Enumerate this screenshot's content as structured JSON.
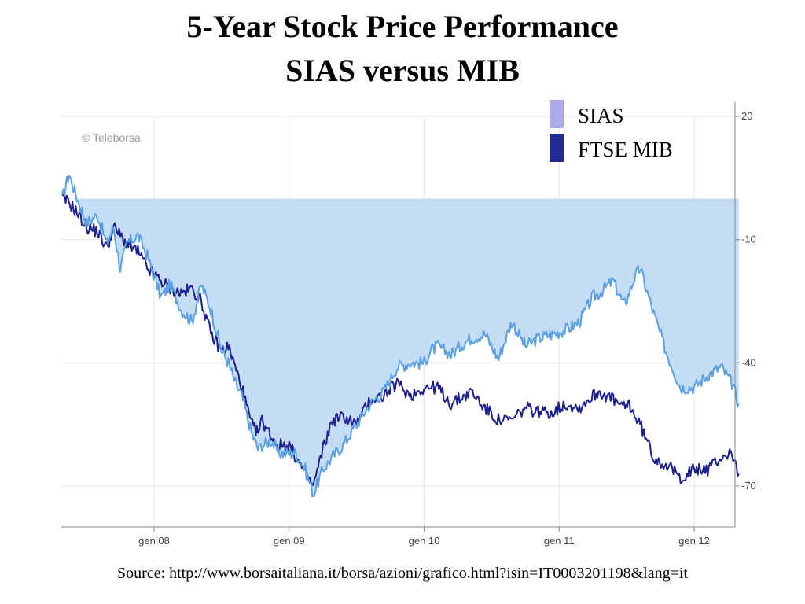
{
  "title_line1": "5-Year Stock Price Performance",
  "title_line2": "SIAS versus MIB",
  "watermark": "© Teleborsa",
  "source": "Source: http://www.borsaitaliana.it/borsa/azioni/grafico.html?isin=IT0003201198&lang=it",
  "chart_data": {
    "type": "line",
    "xlim": [
      2007.32,
      2012.33
    ],
    "ylim": [
      -80,
      20
    ],
    "y_ticks": [
      20,
      -10,
      -40,
      -70
    ],
    "y_tick_labels": [
      "20",
      "-10",
      "-40",
      "-70"
    ],
    "x_ticks": [
      2008,
      2009,
      2010,
      2011,
      2012
    ],
    "x_tick_labels": [
      "gen 08",
      "gen 09",
      "gen 10",
      "gen 11",
      "gen 12"
    ],
    "baseline": 0,
    "grid": true,
    "legend_position": "top-right",
    "series": [
      {
        "name": "SIAS",
        "color": "#5aa0e2",
        "legend_color": "#aaaaea",
        "fill": "#c4dcf4",
        "x": [
          2007.32,
          2007.37,
          2007.42,
          2007.5,
          2007.58,
          2007.65,
          2007.7,
          2007.75,
          2007.8,
          2007.88,
          2007.95,
          2008.05,
          2008.12,
          2008.2,
          2008.28,
          2008.35,
          2008.42,
          2008.5,
          2008.55,
          2008.6,
          2008.65,
          2008.72,
          2008.77,
          2008.8,
          2008.87,
          2008.92,
          2009.0,
          2009.05,
          2009.12,
          2009.18,
          2009.25,
          2009.32,
          2009.4,
          2009.5,
          2009.6,
          2009.7,
          2009.8,
          2009.9,
          2010.0,
          2010.05,
          2010.1,
          2010.2,
          2010.3,
          2010.35,
          2010.45,
          2010.55,
          2010.65,
          2010.75,
          2010.85,
          2010.95,
          2011.05,
          2011.15,
          2011.25,
          2011.3,
          2011.4,
          2011.48,
          2011.52,
          2011.56,
          2011.6,
          2011.7,
          2011.8,
          2011.9,
          2012.0,
          2012.1,
          2012.2,
          2012.28,
          2012.33
        ],
        "values": [
          0,
          6,
          1,
          -6,
          -4,
          -11,
          -7,
          -17,
          -11,
          -9,
          -14,
          -24,
          -21,
          -27,
          -30,
          -21,
          -27,
          -37,
          -40,
          -45,
          -48,
          -57,
          -61,
          -60,
          -59,
          -62,
          -62,
          -62,
          -66,
          -72,
          -66,
          -63,
          -60,
          -55,
          -50,
          -47,
          -41,
          -40,
          -40,
          -37,
          -36,
          -38,
          -35,
          -34,
          -33,
          -39,
          -30,
          -36,
          -34,
          -33,
          -32,
          -30,
          -24,
          -23,
          -20,
          -26,
          -23,
          -19,
          -17,
          -28,
          -38,
          -46,
          -46,
          -43,
          -41,
          -45,
          -50
        ],
        "note": "values are relative performance (%) vs. start"
      },
      {
        "name": "FTSE MIB",
        "color": "#1c1f8c",
        "legend_color": "#222b92",
        "x": [
          2007.32,
          2007.37,
          2007.42,
          2007.5,
          2007.58,
          2007.65,
          2007.7,
          2007.75,
          2007.8,
          2007.88,
          2007.95,
          2008.05,
          2008.12,
          2008.2,
          2008.28,
          2008.35,
          2008.42,
          2008.5,
          2008.55,
          2008.6,
          2008.65,
          2008.72,
          2008.77,
          2008.8,
          2008.87,
          2008.92,
          2009.0,
          2009.05,
          2009.12,
          2009.18,
          2009.25,
          2009.32,
          2009.4,
          2009.5,
          2009.6,
          2009.7,
          2009.8,
          2009.9,
          2010.0,
          2010.05,
          2010.1,
          2010.2,
          2010.3,
          2010.35,
          2010.45,
          2010.55,
          2010.65,
          2010.75,
          2010.85,
          2010.95,
          2011.05,
          2011.15,
          2011.25,
          2011.3,
          2011.4,
          2011.48,
          2011.52,
          2011.56,
          2011.6,
          2011.7,
          2011.8,
          2011.9,
          2012.0,
          2012.1,
          2012.2,
          2012.28,
          2012.33
        ],
        "values": [
          0,
          -1,
          -3,
          -7,
          -8,
          -12,
          -7,
          -9,
          -11,
          -13,
          -17,
          -20,
          -22,
          -23,
          -22,
          -25,
          -33,
          -37,
          -36,
          -41,
          -46,
          -55,
          -57,
          -54,
          -58,
          -60,
          -60,
          -63,
          -67,
          -70,
          -61,
          -54,
          -53,
          -55,
          -49,
          -48,
          -45,
          -48,
          -46,
          -46,
          -46,
          -50,
          -48,
          -47,
          -51,
          -54,
          -54,
          -51,
          -52,
          -52,
          -50,
          -51,
          -48,
          -47,
          -49,
          -51,
          -50,
          -53,
          -55,
          -63,
          -65,
          -68,
          -66,
          -66,
          -63,
          -62,
          -67
        ],
        "note": "values are relative performance (%) vs. start"
      }
    ]
  }
}
